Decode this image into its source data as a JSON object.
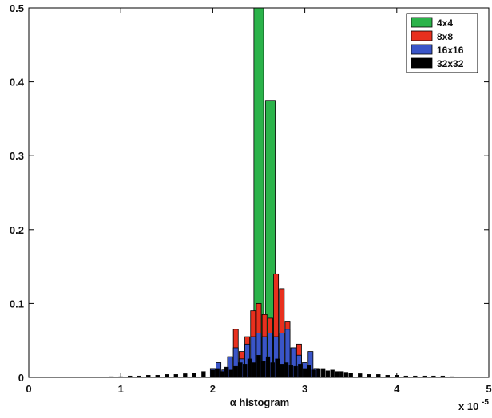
{
  "chart_data": {
    "type": "bar",
    "title": "",
    "xlabel": "α histogram",
    "ylabel": "",
    "x_multiplier": "x 10",
    "x_multiplier_exp": "-5",
    "xlim": [
      0,
      5
    ],
    "ylim": [
      0,
      0.5
    ],
    "xticks": [
      "0",
      "1",
      "2",
      "3",
      "4",
      "5"
    ],
    "yticks": [
      "0",
      "0.1",
      "0.2",
      "0.3",
      "0.4",
      "0.5"
    ],
    "grid": false,
    "legend_position": "top-right",
    "series": [
      {
        "name": "4x4",
        "color": "#2bb34a",
        "x": [
          2.5,
          2.625
        ],
        "values": [
          0.5,
          0.375
        ]
      },
      {
        "name": "8x8",
        "color": "#e8301e",
        "x": [
          2.25,
          2.3125,
          2.375,
          2.4375,
          2.5,
          2.5625,
          2.625,
          2.6875,
          2.75,
          2.8125,
          2.875,
          2.9375
        ],
        "values": [
          0.065,
          0.035,
          0.055,
          0.09,
          0.1,
          0.085,
          0.08,
          0.14,
          0.12,
          0.075,
          0.04,
          0.045
        ]
      },
      {
        "name": "16x16",
        "color": "#3a55c8",
        "x": [
          2.0,
          2.0625,
          2.125,
          2.1875,
          2.25,
          2.3125,
          2.375,
          2.4375,
          2.5,
          2.5625,
          2.625,
          2.6875,
          2.75,
          2.8125,
          2.875,
          2.9375,
          3.0,
          3.0625,
          3.125
        ],
        "values": [
          0.012,
          0.02,
          0.01,
          0.028,
          0.04,
          0.025,
          0.045,
          0.055,
          0.06,
          0.055,
          0.06,
          0.055,
          0.06,
          0.065,
          0.04,
          0.03,
          0.02,
          0.035,
          0.012
        ]
      },
      {
        "name": "32x32",
        "color": "#000000",
        "x": [
          0.9,
          1.0,
          1.1,
          1.2,
          1.3,
          1.4,
          1.5,
          1.6,
          1.7,
          1.8,
          1.9,
          2.0,
          2.05,
          2.1,
          2.15,
          2.2,
          2.25,
          2.3,
          2.35,
          2.4,
          2.45,
          2.5,
          2.55,
          2.6,
          2.65,
          2.7,
          2.75,
          2.8,
          2.85,
          2.9,
          2.95,
          3.0,
          3.05,
          3.1,
          3.15,
          3.2,
          3.25,
          3.3,
          3.35,
          3.4,
          3.45,
          3.5,
          3.6,
          3.7,
          3.8,
          3.9,
          4.0,
          4.1,
          4.2,
          4.3,
          4.4,
          4.5,
          4.6
        ],
        "values": [
          0.001,
          0.001,
          0.002,
          0.002,
          0.003,
          0.003,
          0.004,
          0.004,
          0.005,
          0.006,
          0.008,
          0.01,
          0.012,
          0.008,
          0.014,
          0.01,
          0.015,
          0.02,
          0.018,
          0.025,
          0.02,
          0.03,
          0.022,
          0.028,
          0.02,
          0.025,
          0.018,
          0.02,
          0.016,
          0.015,
          0.018,
          0.012,
          0.016,
          0.01,
          0.012,
          0.012,
          0.009,
          0.01,
          0.008,
          0.008,
          0.007,
          0.006,
          0.005,
          0.004,
          0.004,
          0.003,
          0.003,
          0.002,
          0.002,
          0.002,
          0.002,
          0.002,
          0.001
        ]
      }
    ]
  }
}
